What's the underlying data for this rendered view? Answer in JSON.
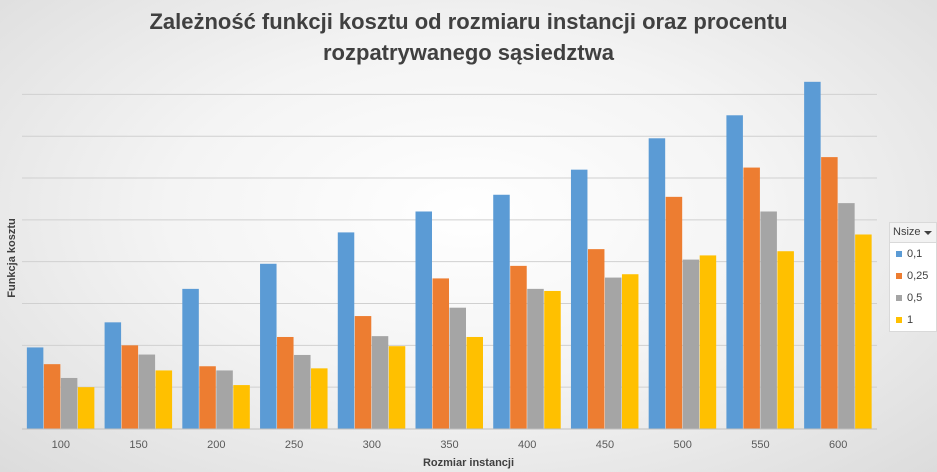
{
  "chart_data": {
    "type": "bar",
    "title_lines": [
      "Zależność funkcji kosztu od rozmiaru instancji oraz procentu",
      "rozpatrywanego sąsiedztwa"
    ],
    "xlabel": "Rozmiar instancji",
    "ylabel": "Funkcja kosztu",
    "categories": [
      "100",
      "150",
      "200",
      "250",
      "300",
      "350",
      "400",
      "450",
      "500",
      "550",
      "600"
    ],
    "ylim": [
      0,
      8.2
    ],
    "grid": true,
    "legend_position": "right",
    "legend_title": "Nsize",
    "series": [
      {
        "name": "0,1",
        "color": "#5b9bd5",
        "values": [
          1.95,
          2.55,
          3.35,
          3.95,
          4.7,
          5.2,
          5.6,
          6.2,
          6.95,
          7.5,
          8.3
        ]
      },
      {
        "name": "0,25",
        "color": "#ed7d31",
        "values": [
          1.55,
          2.0,
          1.5,
          2.2,
          2.7,
          3.6,
          3.9,
          4.3,
          5.55,
          6.25,
          6.5
        ]
      },
      {
        "name": "0,5",
        "color": "#a5a5a5",
        "values": [
          1.22,
          1.78,
          1.4,
          1.77,
          2.22,
          2.9,
          3.35,
          3.62,
          4.05,
          5.2,
          5.4
        ]
      },
      {
        "name": "1",
        "color": "#ffc000",
        "values": [
          1.0,
          1.4,
          1.05,
          1.45,
          1.98,
          2.2,
          3.3,
          3.7,
          4.15,
          4.25,
          4.65
        ]
      }
    ]
  }
}
